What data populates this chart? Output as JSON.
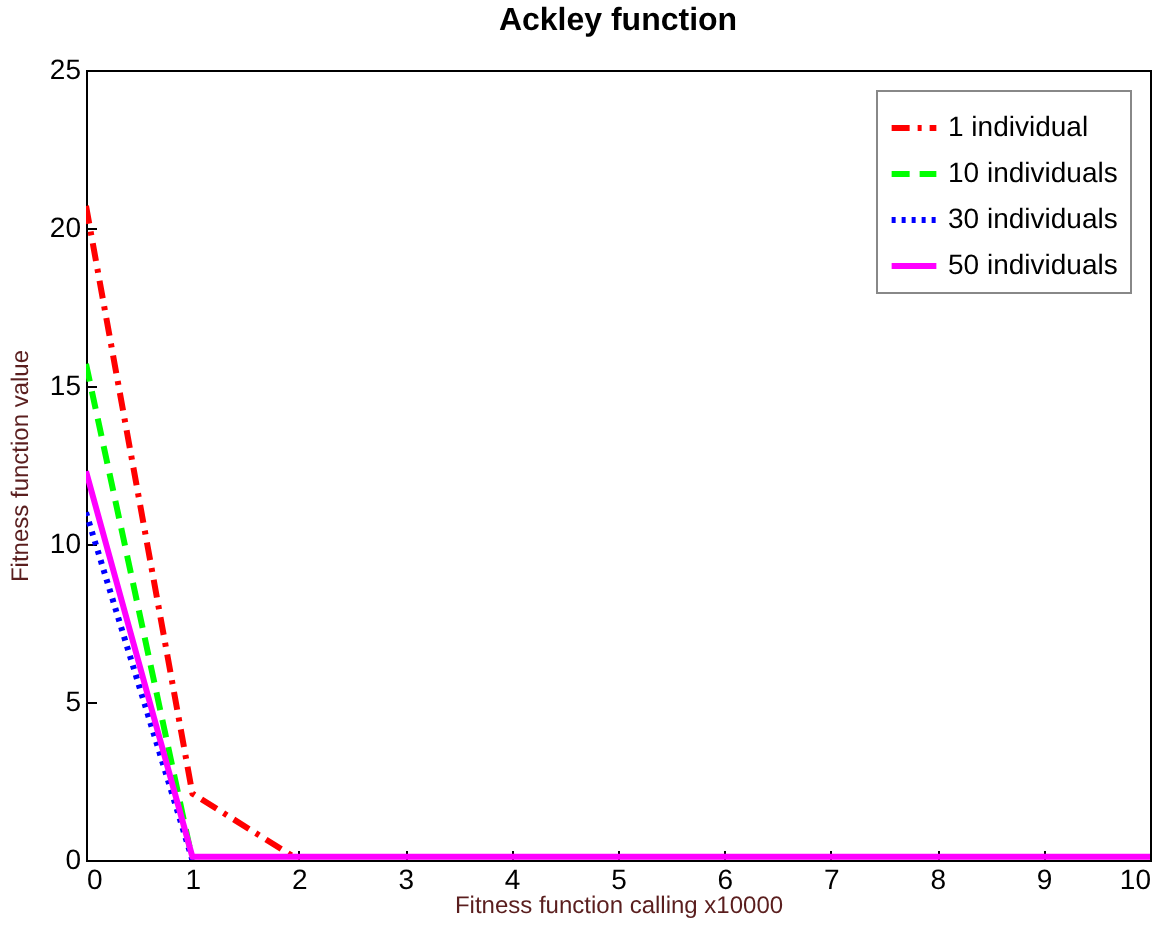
{
  "chart_data": {
    "type": "line",
    "title": "Ackley function",
    "xlabel": "Fitness function calling x10000",
    "ylabel": "Fitness function value",
    "x": [
      0,
      1,
      2,
      3,
      4,
      5,
      6,
      7,
      8,
      9,
      10
    ],
    "series": [
      {
        "name": "1 individual",
        "color": "#ff0000",
        "line_style": "dashdot",
        "values": [
          20.7,
          2.1,
          0,
          null,
          null,
          null,
          null,
          null,
          null,
          null,
          null
        ]
      },
      {
        "name": "10 individuals",
        "color": "#00ff00",
        "line_style": "dashed",
        "values": [
          15.7,
          0,
          null,
          null,
          null,
          null,
          null,
          null,
          null,
          null,
          null
        ]
      },
      {
        "name": "30 individuals",
        "color": "#0000ff",
        "line_style": "dotted",
        "values": [
          11,
          0,
          null,
          null,
          null,
          null,
          null,
          null,
          null,
          null,
          null
        ]
      },
      {
        "name": "50 individuals",
        "color": "#ff00ff",
        "line_style": "solid",
        "values": [
          12.3,
          0.1,
          0.1,
          0.1,
          0.1,
          0.1,
          0.1,
          0.1,
          0.1,
          0.1,
          0.1
        ]
      }
    ],
    "xlim": [
      0,
      10
    ],
    "xticks": [
      0,
      1,
      2,
      3,
      4,
      5,
      6,
      7,
      8,
      9,
      10
    ],
    "ylim": [
      0,
      25
    ],
    "yticks": [
      0,
      5,
      10,
      15,
      20,
      25
    ],
    "grid": false,
    "legend": "top right",
    "marker": "none"
  }
}
